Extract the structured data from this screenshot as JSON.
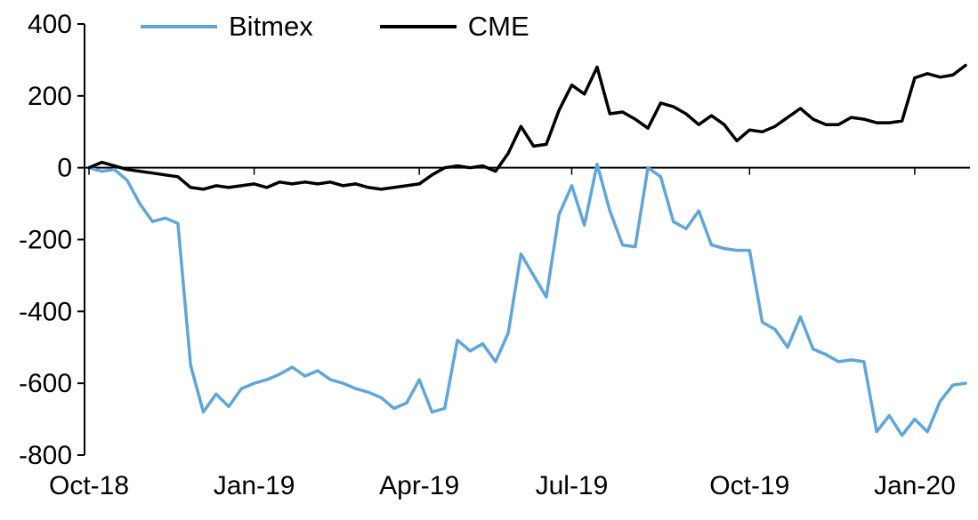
{
  "chart_data": {
    "type": "line",
    "title": "",
    "xlabel": "",
    "ylabel": "",
    "grid": false,
    "legend_position": "top",
    "x_axis": {
      "tick_labels": [
        "Oct-18",
        "Jan-19",
        "Apr-19",
        "Jul-19",
        "Oct-19",
        "Jan-20"
      ],
      "tick_indices": [
        0,
        13,
        26,
        38,
        52,
        65
      ],
      "unit": "weekly"
    },
    "y_axis": {
      "ticks": [
        400,
        200,
        0,
        -200,
        -400,
        -600,
        -800
      ],
      "range": [
        -800,
        400
      ]
    },
    "series": [
      {
        "name": "Bitmex",
        "color": "#5EA6DC",
        "values": [
          0,
          -10,
          -5,
          -35,
          -100,
          -150,
          -140,
          -155,
          -550,
          -680,
          -630,
          -665,
          -615,
          -600,
          -590,
          -575,
          -555,
          -580,
          -565,
          -590,
          -600,
          -615,
          -625,
          -640,
          -670,
          -655,
          -590,
          -680,
          -670,
          -480,
          -510,
          -490,
          -540,
          -460,
          -240,
          -300,
          -360,
          -130,
          -50,
          -160,
          10,
          -120,
          -215,
          -220,
          0,
          -25,
          -150,
          -170,
          -120,
          -215,
          -225,
          -230,
          -230,
          -430,
          -450,
          -500,
          -415,
          -505,
          -520,
          -540,
          -535,
          -540,
          -735,
          -690,
          -745,
          -700,
          -735,
          -650,
          -605,
          -600
        ]
      },
      {
        "name": "CME",
        "color": "#000000",
        "values": [
          0,
          15,
          5,
          -5,
          -10,
          -15,
          -20,
          -25,
          -55,
          -60,
          -50,
          -55,
          -50,
          -45,
          -55,
          -40,
          -45,
          -40,
          -45,
          -40,
          -50,
          -45,
          -55,
          -60,
          -55,
          -50,
          -45,
          -20,
          0,
          5,
          0,
          5,
          -10,
          40,
          115,
          60,
          65,
          160,
          230,
          205,
          280,
          150,
          155,
          135,
          110,
          180,
          170,
          150,
          120,
          145,
          120,
          75,
          105,
          100,
          115,
          140,
          165,
          135,
          120,
          120,
          140,
          135,
          125,
          125,
          130,
          250,
          262,
          252,
          258,
          285
        ]
      }
    ]
  }
}
